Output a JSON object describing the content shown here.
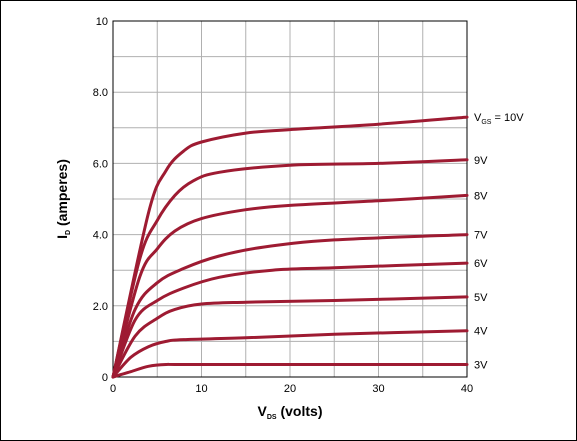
{
  "chart_data": {
    "type": "line",
    "xlim": [
      0,
      40
    ],
    "ylim": [
      0,
      10
    ],
    "x_ticks": [
      "0",
      "10",
      "20",
      "30",
      "40"
    ],
    "y_ticks": [
      "0",
      "2.0",
      "4.0",
      "6.0",
      "8.0",
      "10"
    ],
    "grid": true,
    "line_color": "#9e1b32",
    "xlabel_main": "V",
    "xlabel_sub": "DS",
    "xlabel_rest": " (volts)",
    "ylabel_main": "I",
    "ylabel_sub": "D",
    "ylabel_rest": " (amperes)",
    "series": [
      {
        "label_main": "V",
        "label_sub": "GS",
        "label_rest": " = 10V",
        "points": [
          [
            0,
            0
          ],
          [
            4,
            4.6
          ],
          [
            6,
            5.8
          ],
          [
            8,
            6.35
          ],
          [
            10,
            6.6
          ],
          [
            15,
            6.85
          ],
          [
            20,
            6.95
          ],
          [
            30,
            7.1
          ],
          [
            40,
            7.3
          ]
        ]
      },
      {
        "label_main": "9V",
        "label_sub": "",
        "label_rest": "",
        "points": [
          [
            0,
            0
          ],
          [
            3,
            3.3
          ],
          [
            5,
            4.4
          ],
          [
            7,
            5.1
          ],
          [
            9,
            5.5
          ],
          [
            12,
            5.75
          ],
          [
            20,
            5.95
          ],
          [
            30,
            6.0
          ],
          [
            40,
            6.1
          ]
        ]
      },
      {
        "label_main": "8V",
        "label_sub": "",
        "label_rest": "",
        "points": [
          [
            0,
            0
          ],
          [
            3,
            2.8
          ],
          [
            5,
            3.6
          ],
          [
            7,
            4.1
          ],
          [
            10,
            4.45
          ],
          [
            15,
            4.7
          ],
          [
            20,
            4.82
          ],
          [
            30,
            4.95
          ],
          [
            40,
            5.1
          ]
        ]
      },
      {
        "label_main": "7V",
        "label_sub": "",
        "label_rest": "",
        "points": [
          [
            0,
            0
          ],
          [
            2.5,
            1.9
          ],
          [
            5,
            2.65
          ],
          [
            8,
            3.05
          ],
          [
            12,
            3.4
          ],
          [
            17,
            3.65
          ],
          [
            25,
            3.85
          ],
          [
            40,
            4.0
          ]
        ]
      },
      {
        "label_main": "6V",
        "label_sub": "",
        "label_rest": "",
        "points": [
          [
            0,
            0
          ],
          [
            2.5,
            1.6
          ],
          [
            5,
            2.15
          ],
          [
            8,
            2.5
          ],
          [
            12,
            2.8
          ],
          [
            18,
            3.0
          ],
          [
            25,
            3.07
          ],
          [
            40,
            3.2
          ]
        ]
      },
      {
        "label_main": "5V",
        "label_sub": "",
        "label_rest": "",
        "points": [
          [
            0,
            0
          ],
          [
            2.5,
            1.15
          ],
          [
            5,
            1.65
          ],
          [
            7,
            1.9
          ],
          [
            10,
            2.05
          ],
          [
            15,
            2.1
          ],
          [
            25,
            2.15
          ],
          [
            40,
            2.25
          ]
        ]
      },
      {
        "label_main": "4V",
        "label_sub": "",
        "label_rest": "",
        "points": [
          [
            0,
            0
          ],
          [
            2,
            0.55
          ],
          [
            4,
            0.85
          ],
          [
            6,
            1.0
          ],
          [
            8,
            1.05
          ],
          [
            15,
            1.1
          ],
          [
            25,
            1.2
          ],
          [
            40,
            1.3
          ]
        ]
      },
      {
        "label_main": "3V",
        "label_sub": "",
        "label_rest": "",
        "points": [
          [
            0,
            0
          ],
          [
            2,
            0.15
          ],
          [
            4,
            0.3
          ],
          [
            6,
            0.35
          ],
          [
            10,
            0.35
          ],
          [
            40,
            0.35
          ]
        ]
      }
    ]
  }
}
